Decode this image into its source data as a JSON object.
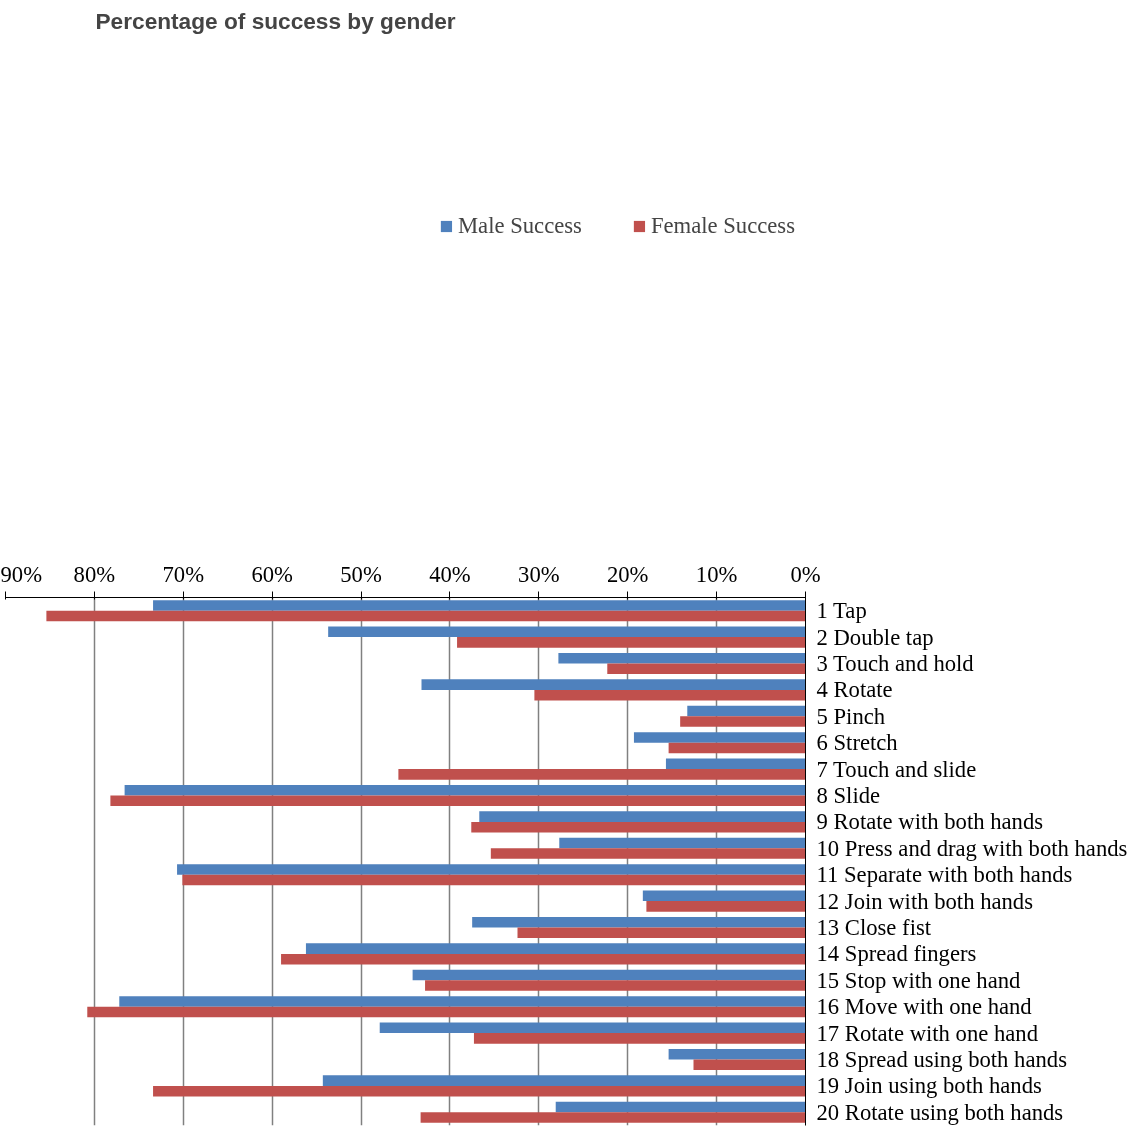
{
  "chart_data": {
    "type": "bar",
    "orientation": "horizontal",
    "title": "Percentage of success by gender",
    "categories": [
      "1 Tap",
      "2 Double tap",
      "3 Touch and hold",
      "4 Rotate",
      "5 Pinch",
      "6 Stretch",
      "7 Touch and slide",
      "8 Slide",
      "9 Rotate with both hands",
      "10 Press and drag with both hands",
      "11 Separate with both hands",
      "12 Join with both hands",
      "13 Close fist",
      "14 Spread fingers",
      "15 Stop with one hand",
      "16 Move with one hand",
      "17 Rotate with one hand",
      "18 Spread using both hands",
      "19 Join using both hands",
      "20 Rotate using both hands"
    ],
    "series": [
      {
        "name": "Male Success",
        "color": "#4f81bd",
        "values": [
          73.4,
          53.7,
          27.8,
          43.2,
          13.3,
          19.3,
          15.7,
          76.6,
          36.7,
          27.7,
          70.7,
          18.3,
          37.5,
          56.2,
          44.2,
          77.2,
          47.9,
          15.4,
          54.3,
          28.1
        ]
      },
      {
        "name": "Female Success",
        "color": "#c0504d",
        "values": [
          85.4,
          39.2,
          22.3,
          30.5,
          14.1,
          15.4,
          45.8,
          78.2,
          37.6,
          35.4,
          70.1,
          17.9,
          32.4,
          59.0,
          42.8,
          80.8,
          37.3,
          12.6,
          73.4,
          43.3
        ]
      }
    ],
    "xlim": [
      90,
      0
    ],
    "xticks": [
      {
        "value": 90,
        "label": "90%"
      },
      {
        "value": 80,
        "label": "80%"
      },
      {
        "value": 70,
        "label": "70%"
      },
      {
        "value": 60,
        "label": "60%"
      },
      {
        "value": 50,
        "label": "50%"
      },
      {
        "value": 40,
        "label": "40%"
      },
      {
        "value": 30,
        "label": "30%"
      },
      {
        "value": 20,
        "label": "20%"
      },
      {
        "value": 10,
        "label": "10%"
      },
      {
        "value": 0,
        "label": "0%"
      }
    ],
    "grid": "x",
    "legend": "top right"
  }
}
